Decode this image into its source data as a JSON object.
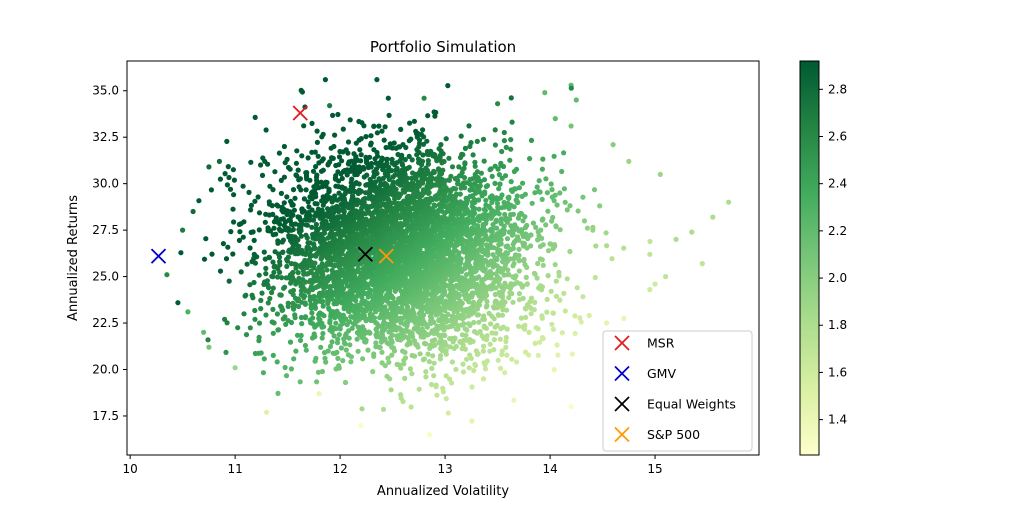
{
  "chart_data": {
    "type": "scatter",
    "title": "Portfolio Simulation",
    "xlabel": "Annualized Volatility",
    "ylabel": "Annualized Returns",
    "xlim": [
      9.97,
      15.99
    ],
    "ylim": [
      15.4,
      36.6
    ],
    "xticks": [
      10,
      11,
      12,
      13,
      14,
      15
    ],
    "yticks": [
      17.5,
      20.0,
      22.5,
      25.0,
      27.5,
      30.0,
      32.5,
      35.0
    ],
    "ytick_labels": [
      "17.5",
      "20.0",
      "22.5",
      "25.0",
      "27.5",
      "30.0",
      "32.5",
      "35.0"
    ],
    "grid": false,
    "colormap": [
      "#ffffcc",
      "#d9f0a3",
      "#addd8e",
      "#78c679",
      "#41ab5d",
      "#238443",
      "#005a32"
    ],
    "colorbar": {
      "range": [
        1.25,
        2.92
      ],
      "ticks": [
        1.4,
        1.6,
        1.8,
        2.0,
        2.2,
        2.4,
        2.6,
        2.8
      ],
      "tick_labels": [
        "1.4",
        "1.6",
        "1.8",
        "2.0",
        "2.2",
        "2.4",
        "2.6",
        "2.8"
      ]
    },
    "cloud": {
      "center_volatility": 12.6,
      "center_return": 26.2,
      "volatility_sd": 0.62,
      "return_sd": 2.7
    },
    "outliers": [
      {
        "x": 12.35,
        "y": 35.6,
        "c": 2.9
      },
      {
        "x": 14.2,
        "y": 35.3,
        "c": 2.2
      },
      {
        "x": 13.95,
        "y": 34.9,
        "c": 2.2
      },
      {
        "x": 14.25,
        "y": 34.5,
        "c": 2.2
      },
      {
        "x": 13.5,
        "y": 34.3,
        "c": 2.6
      },
      {
        "x": 11.9,
        "y": 34.2,
        "c": 2.7
      },
      {
        "x": 12.8,
        "y": 34.6,
        "c": 2.6
      },
      {
        "x": 14.05,
        "y": 33.5,
        "c": 2.2
      },
      {
        "x": 14.2,
        "y": 33.1,
        "c": 2.1
      },
      {
        "x": 14.6,
        "y": 32.1,
        "c": 2.0
      },
      {
        "x": 14.75,
        "y": 31.2,
        "c": 1.9
      },
      {
        "x": 15.05,
        "y": 30.5,
        "c": 1.9
      },
      {
        "x": 15.7,
        "y": 29.0,
        "c": 1.8
      },
      {
        "x": 15.55,
        "y": 28.2,
        "c": 1.8
      },
      {
        "x": 15.35,
        "y": 27.4,
        "c": 1.8
      },
      {
        "x": 15.2,
        "y": 27.0,
        "c": 1.8
      },
      {
        "x": 14.95,
        "y": 26.2,
        "c": 1.7
      },
      {
        "x": 15.45,
        "y": 25.7,
        "c": 1.7
      },
      {
        "x": 15.1,
        "y": 25.0,
        "c": 1.7
      },
      {
        "x": 15.0,
        "y": 24.6,
        "c": 1.6
      },
      {
        "x": 14.95,
        "y": 24.3,
        "c": 1.6
      },
      {
        "x": 14.2,
        "y": 18.0,
        "c": 1.3
      },
      {
        "x": 12.85,
        "y": 16.5,
        "c": 1.3
      },
      {
        "x": 12.2,
        "y": 17.0,
        "c": 1.3
      },
      {
        "x": 11.8,
        "y": 18.7,
        "c": 1.4
      },
      {
        "x": 10.85,
        "y": 31.2,
        "c": 2.8
      },
      {
        "x": 10.75,
        "y": 30.9,
        "c": 2.8
      },
      {
        "x": 10.6,
        "y": 28.5,
        "c": 2.8
      },
      {
        "x": 10.5,
        "y": 27.5,
        "c": 2.7
      },
      {
        "x": 10.35,
        "y": 25.1,
        "c": 2.6
      },
      {
        "x": 10.55,
        "y": 23.1,
        "c": 2.3
      },
      {
        "x": 10.7,
        "y": 22.0,
        "c": 2.2
      },
      {
        "x": 10.75,
        "y": 21.2,
        "c": 2.1
      },
      {
        "x": 11.0,
        "y": 20.1,
        "c": 1.9
      },
      {
        "x": 11.3,
        "y": 17.7,
        "c": 1.5
      }
    ],
    "series": [
      {
        "name": "MSR",
        "x": 11.62,
        "y": 33.8,
        "color": "#e41a1c"
      },
      {
        "name": "GMV",
        "x": 10.27,
        "y": 26.1,
        "color": "#0000cc"
      },
      {
        "name": "Equal Weights",
        "x": 12.24,
        "y": 26.2,
        "color": "#000000"
      },
      {
        "name": "S&P 500",
        "x": 12.44,
        "y": 26.1,
        "color": "#ff9900"
      }
    ],
    "legend_position": "lower-right"
  }
}
